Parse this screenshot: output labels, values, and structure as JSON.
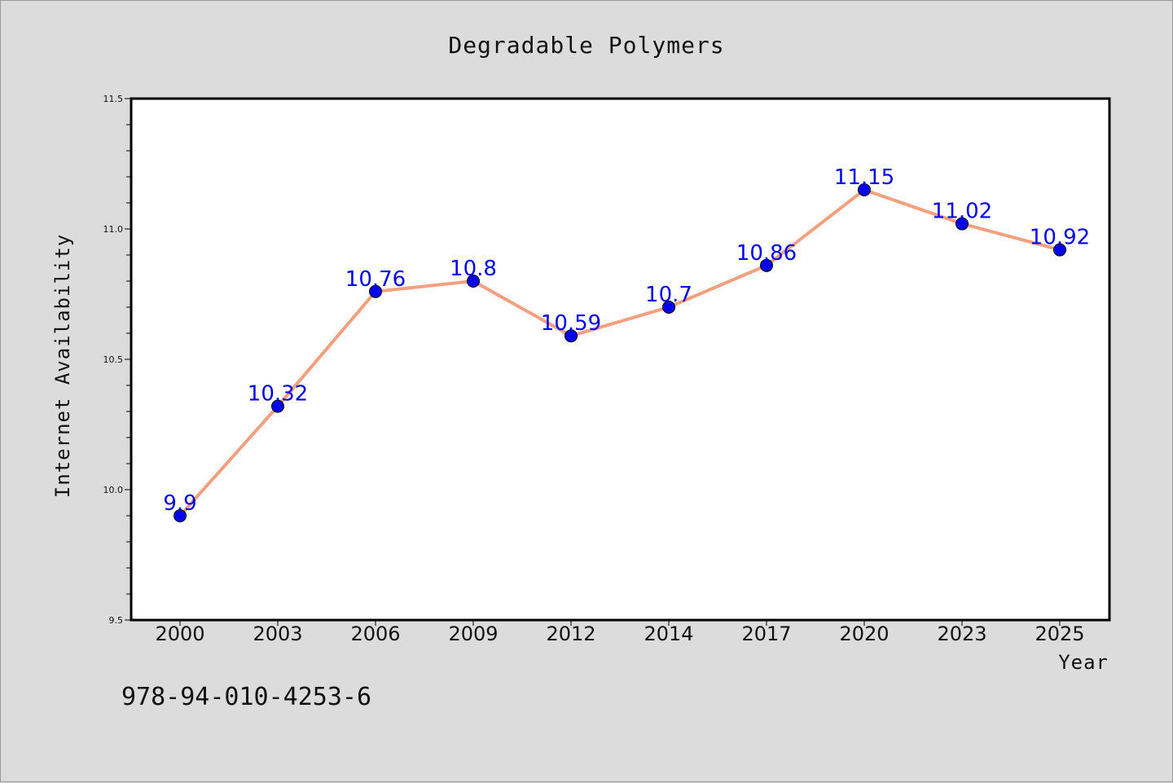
{
  "chart_data": {
    "type": "line",
    "title": "Degradable Polymers",
    "xlabel": "Year",
    "ylabel": "Internet Availability",
    "categories": [
      "2000",
      "2003",
      "2006",
      "2009",
      "2012",
      "2014",
      "2017",
      "2020",
      "2023",
      "2025"
    ],
    "series": [
      {
        "values": [
          9.9,
          10.32,
          10.76,
          10.8,
          10.59,
          10.7,
          10.86,
          11.15,
          11.02,
          10.92
        ],
        "data_labels": [
          "9.9",
          "10.32",
          "10.76",
          "10.8",
          "10.59",
          "10.7",
          "10.86",
          "11.15",
          "11.02",
          "10.92"
        ]
      }
    ],
    "ylim": [
      9.5,
      11.5
    ],
    "yticks": [
      "9.5",
      "10.0",
      "10.5",
      "11.0",
      "11.5"
    ],
    "grid": false,
    "line_color": "#f4a07e",
    "marker_color": "#0000ee",
    "label_color": "#0000ee"
  },
  "annotation": "978-94-010-4253-6"
}
